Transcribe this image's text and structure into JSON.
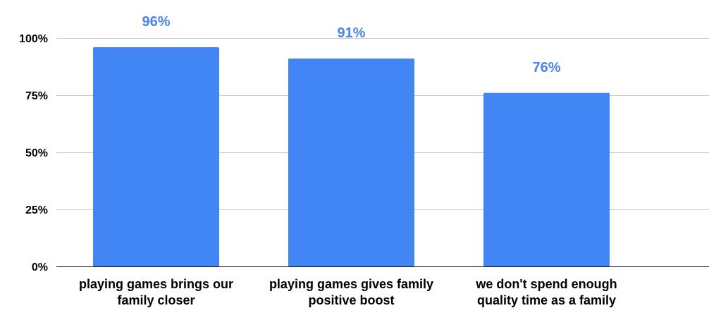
{
  "chart_data": {
    "type": "bar",
    "categories": [
      [
        "playing games brings our",
        "family closer"
      ],
      [
        "playing games gives family",
        "positive boost"
      ],
      [
        "we don't spend enough",
        "quality time as a family"
      ]
    ],
    "values": [
      96,
      91,
      76
    ],
    "data_labels": [
      "96%",
      "91%",
      "76%"
    ],
    "yticks": [
      {
        "value": 0,
        "label": "0%"
      },
      {
        "value": 25,
        "label": "25%"
      },
      {
        "value": 50,
        "label": "50%"
      },
      {
        "value": 75,
        "label": "75%"
      },
      {
        "value": 100,
        "label": "100%"
      }
    ],
    "ylim": [
      0,
      100
    ],
    "grid": true,
    "legend": "none",
    "title": "",
    "xlabel": "",
    "ylabel": "",
    "colors": {
      "bar": "#4285f4",
      "data_label": "#4a86e8",
      "grid": "#cccccc",
      "axis": "#000000"
    }
  }
}
